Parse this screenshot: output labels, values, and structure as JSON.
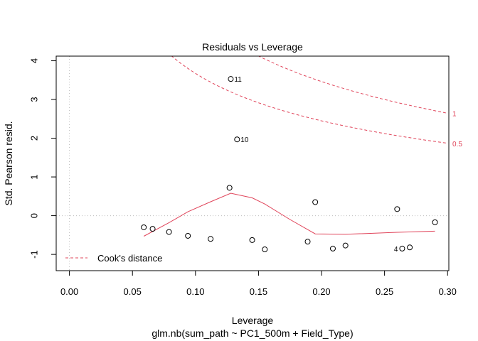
{
  "chart_data": {
    "type": "scatter",
    "title": "Residuals vs Leverage",
    "xlabel": "Leverage",
    "ylabel": "Std. Pearson resid.",
    "subtitle": "glm.nb(sum_path ~ PC1_500m + Field_Type)",
    "xlim": [
      -0.0105,
      0.301
    ],
    "ylim": [
      -1.42,
      4.12
    ],
    "xticks": [
      0.0,
      0.05,
      0.1,
      0.15,
      0.2,
      0.25,
      0.3
    ],
    "xtick_labels": [
      "0.00",
      "0.05",
      "0.10",
      "0.15",
      "0.20",
      "0.25",
      "0.30"
    ],
    "yticks": [
      -1,
      0,
      1,
      2,
      3,
      4
    ],
    "ytick_labels": [
      "-1",
      "0",
      "1",
      "2",
      "3",
      "4"
    ],
    "reference_lines": {
      "h": 0,
      "v": 0
    },
    "points": [
      {
        "x": 0.059,
        "y": -0.3
      },
      {
        "x": 0.066,
        "y": -0.34
      },
      {
        "x": 0.079,
        "y": -0.42
      },
      {
        "x": 0.094,
        "y": -0.52
      },
      {
        "x": 0.112,
        "y": -0.6
      },
      {
        "x": 0.127,
        "y": 0.72
      },
      {
        "x": 0.128,
        "y": 3.53,
        "label": "11"
      },
      {
        "x": 0.133,
        "y": 1.97,
        "label": "10"
      },
      {
        "x": 0.145,
        "y": -0.63
      },
      {
        "x": 0.155,
        "y": -0.87
      },
      {
        "x": 0.189,
        "y": -0.67
      },
      {
        "x": 0.195,
        "y": 0.35
      },
      {
        "x": 0.209,
        "y": -0.85
      },
      {
        "x": 0.219,
        "y": -0.77
      },
      {
        "x": 0.26,
        "y": 0.17
      },
      {
        "x": 0.264,
        "y": -0.85,
        "label": "4"
      },
      {
        "x": 0.27,
        "y": -0.82
      },
      {
        "x": 0.29,
        "y": -0.17
      }
    ],
    "smoother": {
      "color": "#E0445A",
      "x": [
        0.059,
        0.079,
        0.094,
        0.112,
        0.128,
        0.145,
        0.155,
        0.175,
        0.195,
        0.219,
        0.26,
        0.29
      ],
      "y": [
        -0.53,
        -0.18,
        0.1,
        0.36,
        0.58,
        0.46,
        0.3,
        -0.1,
        -0.47,
        -0.48,
        -0.43,
        -0.4
      ]
    },
    "cooks_distance": {
      "color": "#E0445A",
      "p": 3,
      "levels": [
        0.5,
        1
      ],
      "level_labels": [
        "0.5",
        "1"
      ],
      "legend": "Cook's distance",
      "legend_position": "bottom-left"
    }
  }
}
